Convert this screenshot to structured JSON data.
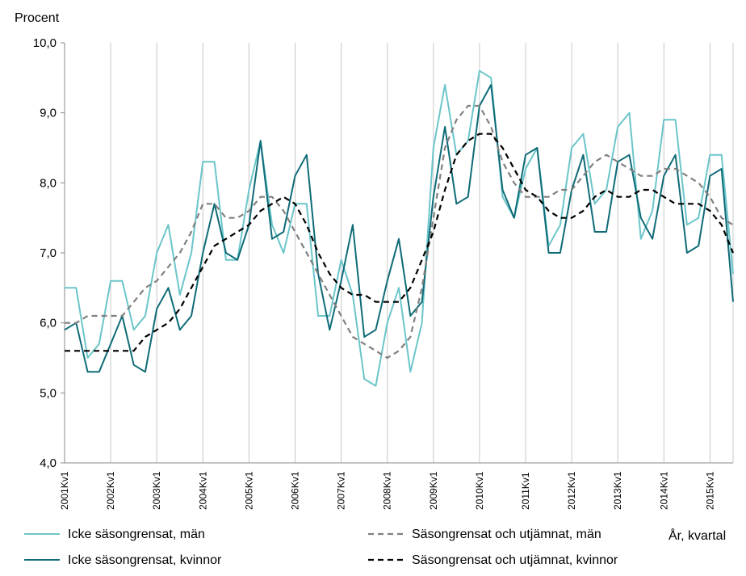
{
  "chart_data": {
    "type": "line",
    "ylabel": "Procent",
    "xlabel": "År, kvartal",
    "ylim": [
      4.0,
      10.0
    ],
    "yticks": [
      "4,0",
      "5,0",
      "6,0",
      "7,0",
      "8,0",
      "9,0",
      "10,0"
    ],
    "ytick_values": [
      4,
      5,
      6,
      7,
      8,
      9,
      10
    ],
    "grid": "vertical",
    "x": [
      "2001Kv1",
      "2001Kv2",
      "2001Kv3",
      "2001Kv4",
      "2002Kv1",
      "2002Kv2",
      "2002Kv3",
      "2002Kv4",
      "2003Kv1",
      "2003Kv2",
      "2003Kv3",
      "2003Kv4",
      "2004Kv1",
      "2004Kv2",
      "2004Kv3",
      "2004Kv4",
      "2005Kv1",
      "2005Kv2",
      "2005Kv3",
      "2005Kv4",
      "2006Kv1",
      "2006Kv2",
      "2006Kv3",
      "2006Kv4",
      "2007Kv1",
      "2007Kv2",
      "2007Kv3",
      "2007Kv4",
      "2008Kv1",
      "2008Kv2",
      "2008Kv3",
      "2008Kv4",
      "2009Kv1",
      "2009Kv2",
      "2009Kv3",
      "2009Kv4",
      "2010Kv1",
      "2010Kv2",
      "2010Kv3",
      "2010Kv4",
      "2011Kv1",
      "2011Kv2",
      "2011Kv3",
      "2011Kv4",
      "2012Kv1",
      "2012Kv2",
      "2012Kv3",
      "2012Kv4",
      "2013Kv1",
      "2013Kv2",
      "2013Kv3",
      "2013Kv4",
      "2014Kv1",
      "2014Kv2",
      "2014Kv3",
      "2014Kv4",
      "2015Kv1",
      "2015Kv2",
      "2015Kv3"
    ],
    "xtick_labels": [
      "2001Kv1",
      "2002Kv1",
      "2003Kv1",
      "2004Kv1",
      "2005Kv1",
      "2006Kv1",
      "2007Kv1",
      "2008Kv1",
      "2009Kv1",
      "2010Kv1",
      "2011Kv1",
      "2012Kv1",
      "2013Kv1",
      "2014Kv1",
      "2015Kv1"
    ],
    "series": [
      {
        "name": "Icke säsongrensat, män",
        "color": "#6bc5c9",
        "style": "solid",
        "values": [
          6.5,
          6.5,
          5.5,
          5.7,
          6.6,
          6.6,
          5.9,
          6.1,
          7.0,
          7.4,
          6.4,
          7.0,
          8.3,
          8.3,
          6.9,
          6.9,
          7.9,
          8.6,
          7.4,
          7.0,
          7.7,
          7.7,
          6.1,
          6.1,
          6.9,
          6.4,
          5.2,
          5.1,
          6.0,
          6.5,
          5.3,
          6.0,
          8.5,
          9.4,
          8.4,
          8.6,
          9.6,
          9.5,
          7.8,
          7.5,
          8.2,
          8.5,
          7.1,
          7.4,
          8.5,
          8.7,
          7.7,
          7.9,
          8.8,
          9.0,
          7.2,
          7.6,
          8.9,
          8.9,
          7.4,
          7.5,
          8.4,
          8.4,
          6.7
        ]
      },
      {
        "name": "Icke säsongrensat, kvinnor",
        "color": "#0e6b77",
        "style": "solid",
        "values": [
          5.9,
          6.0,
          5.3,
          5.3,
          5.7,
          6.1,
          5.4,
          5.3,
          6.2,
          6.5,
          5.9,
          6.1,
          7.0,
          7.7,
          7.0,
          6.9,
          7.4,
          8.6,
          7.2,
          7.3,
          8.1,
          8.4,
          6.7,
          5.9,
          6.6,
          7.4,
          5.8,
          5.9,
          6.6,
          7.2,
          6.1,
          6.3,
          7.8,
          8.8,
          7.7,
          7.8,
          9.1,
          9.4,
          7.9,
          7.5,
          8.4,
          8.5,
          7.0,
          7.0,
          7.9,
          8.4,
          7.3,
          7.3,
          8.3,
          8.4,
          7.5,
          7.2,
          8.1,
          8.4,
          7.0,
          7.1,
          8.1,
          8.2,
          6.3
        ]
      },
      {
        "name": "Säsongrensat och utjämnat, män",
        "color": "#808080",
        "style": "dashed",
        "values": [
          6.0,
          6.0,
          6.1,
          6.1,
          6.1,
          6.1,
          6.3,
          6.5,
          6.6,
          6.8,
          7.0,
          7.3,
          7.7,
          7.7,
          7.5,
          7.5,
          7.6,
          7.8,
          7.8,
          7.6,
          7.3,
          7.0,
          6.7,
          6.4,
          6.1,
          5.8,
          5.7,
          5.6,
          5.5,
          5.6,
          5.8,
          6.5,
          7.5,
          8.5,
          8.9,
          9.1,
          9.1,
          8.8,
          8.3,
          8.0,
          7.8,
          7.8,
          7.8,
          7.9,
          7.9,
          8.1,
          8.3,
          8.4,
          8.3,
          8.2,
          8.1,
          8.1,
          8.2,
          8.2,
          8.1,
          8.0,
          7.8,
          7.5,
          7.4
        ]
      },
      {
        "name": "Säsongrensat och utjämnat, kvinnor",
        "color": "#000000",
        "style": "dashed",
        "values": [
          5.6,
          5.6,
          5.6,
          5.6,
          5.6,
          5.6,
          5.6,
          5.8,
          5.9,
          6.0,
          6.2,
          6.5,
          6.8,
          7.1,
          7.2,
          7.3,
          7.4,
          7.6,
          7.7,
          7.8,
          7.7,
          7.4,
          7.0,
          6.7,
          6.5,
          6.4,
          6.4,
          6.3,
          6.3,
          6.3,
          6.5,
          6.9,
          7.3,
          7.9,
          8.4,
          8.6,
          8.7,
          8.7,
          8.5,
          8.2,
          7.9,
          7.8,
          7.6,
          7.5,
          7.5,
          7.6,
          7.8,
          7.9,
          7.8,
          7.8,
          7.9,
          7.9,
          7.8,
          7.7,
          7.7,
          7.7,
          7.6,
          7.4,
          7.0
        ]
      }
    ]
  }
}
